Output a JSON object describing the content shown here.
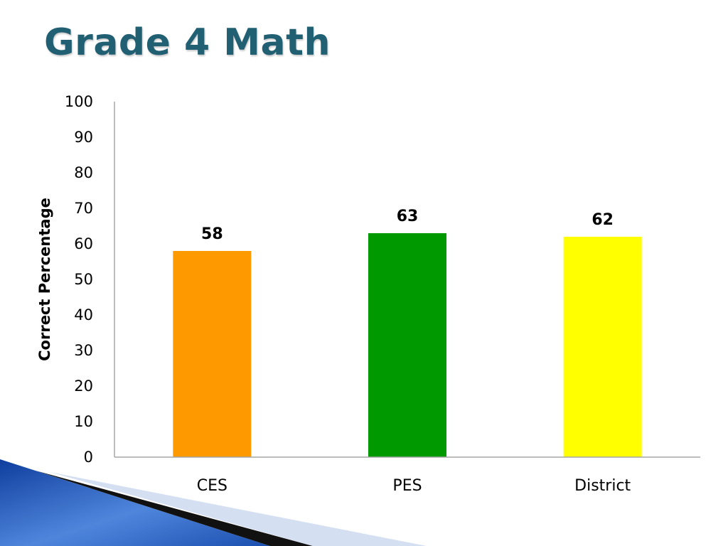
{
  "slide": {
    "title": "Grade 4 Math"
  },
  "colors": {
    "title": "#215f73",
    "axis": "#a6a6a6"
  },
  "chart_data": {
    "type": "bar",
    "title": "",
    "xlabel": "",
    "ylabel": "Correct Percentage",
    "categories": [
      "CES",
      "PES",
      "District"
    ],
    "values": [
      58,
      63,
      62
    ],
    "data_labels": [
      "58",
      "63",
      "62"
    ],
    "bar_colors": [
      "#ff9900",
      "#009900",
      "#ffff00"
    ],
    "ylim": [
      0,
      100
    ],
    "yticks": [
      0,
      10,
      20,
      30,
      40,
      50,
      60,
      70,
      80,
      90,
      100
    ],
    "ytick_labels": [
      "0",
      "10",
      "20",
      "30",
      "40",
      "50",
      "60",
      "70",
      "80",
      "90",
      "100"
    ],
    "grid": false,
    "legend": "none"
  }
}
